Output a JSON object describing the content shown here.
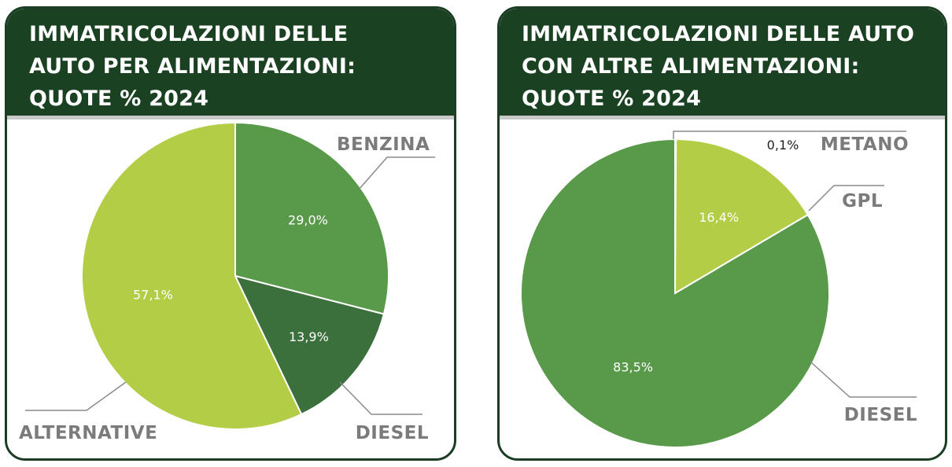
{
  "chart_data": [
    {
      "type": "pie",
      "title": [
        "IMMATRICOLAZIONI DELLE",
        "AUTO PER ALIMENTAZIONI:",
        "QUOTE % 2024"
      ],
      "categories": [
        "BENZINA",
        "DIESEL",
        "ALTERNATIVE"
      ],
      "values": [
        29.0,
        13.9,
        57.1
      ],
      "value_labels": [
        "29,0%",
        "13,9%",
        "57,1%"
      ],
      "colors": [
        "#58994a",
        "#3b6f3b",
        "#b3cd46"
      ],
      "label_color": "#7b7b7b"
    },
    {
      "type": "pie",
      "title": [
        "IMMATRICOLAZIONI DELLE AUTO",
        "CON ALTRE ALIMENTAZIONI:",
        "QUOTE % 2024"
      ],
      "categories": [
        "METANO",
        "GPL",
        "DIESEL"
      ],
      "values": [
        0.1,
        16.4,
        83.5
      ],
      "value_labels": [
        "0,1%",
        "16,4%",
        "83,5%"
      ],
      "colors": [
        "#2f6b2f",
        "#b3cd46",
        "#58994a"
      ],
      "label_color": "#7b7b7b"
    }
  ]
}
